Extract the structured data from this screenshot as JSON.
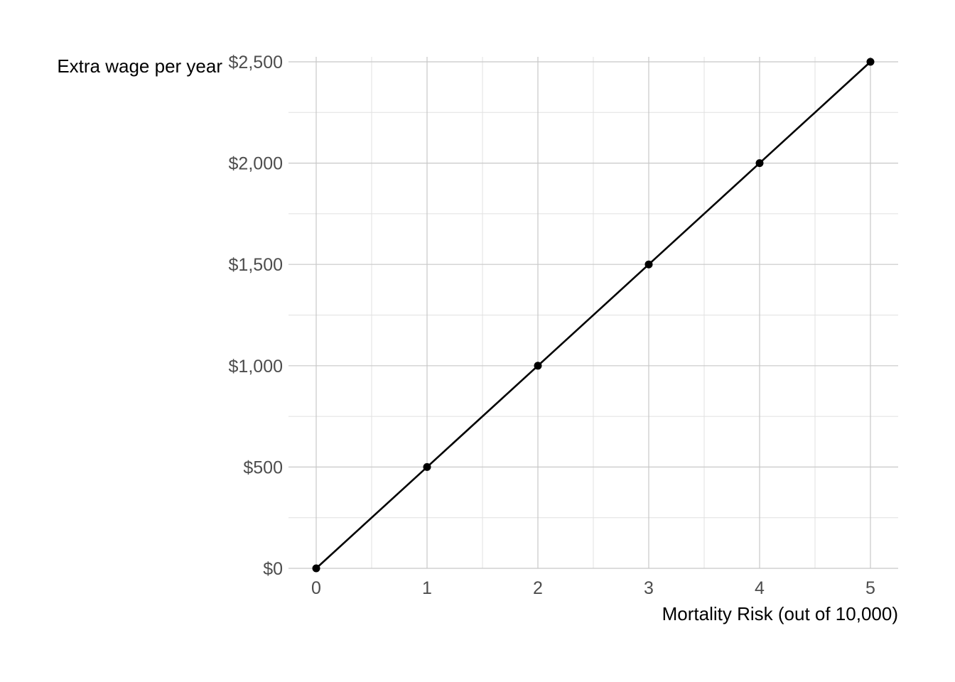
{
  "chart_data": {
    "type": "line",
    "title": "",
    "xlabel": "Mortality Risk (out of 10,000)",
    "ylabel": "Extra wage per year",
    "x": [
      0,
      1,
      2,
      3,
      4,
      5
    ],
    "series": [
      {
        "values": [
          0,
          500,
          1000,
          1500,
          2000,
          2500
        ],
        "color": "#000000",
        "markers": true
      }
    ],
    "xlim": [
      -0.25,
      5.25
    ],
    "ylim": [
      0,
      2500
    ],
    "xticks": [
      0,
      1,
      2,
      3,
      4,
      5
    ],
    "xtick_labels": [
      "0",
      "1",
      "2",
      "3",
      "4",
      "5"
    ],
    "xminor": [
      0.5,
      1.5,
      2.5,
      3.5,
      4.5
    ],
    "yticks": [
      0,
      500,
      1000,
      1500,
      2000,
      2500
    ],
    "ytick_labels": [
      "$0",
      "$500",
      "$1,000",
      "$1,500",
      "$2,000",
      "$2,500"
    ],
    "yminor": [
      250,
      750,
      1250,
      1750,
      2250
    ],
    "grid": true,
    "legend": "none"
  }
}
